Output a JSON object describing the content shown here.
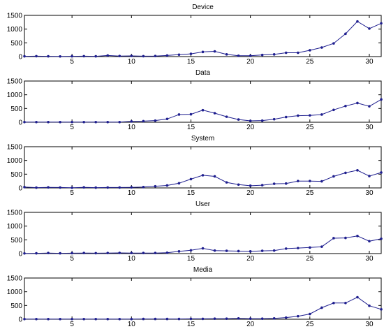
{
  "chart_data": [
    {
      "type": "line",
      "title": "Device",
      "xlabel": "",
      "ylabel": "",
      "xlim": [
        1,
        31
      ],
      "ylim": [
        0,
        1500
      ],
      "xticks": [
        5,
        10,
        15,
        20,
        25,
        30
      ],
      "yticks": [
        0,
        500,
        1000,
        1500
      ],
      "grid": false,
      "color": "#1f1f8f",
      "x": [
        1,
        2,
        3,
        4,
        5,
        6,
        7,
        8,
        9,
        10,
        11,
        12,
        13,
        14,
        15,
        16,
        17,
        18,
        19,
        20,
        21,
        22,
        23,
        24,
        25,
        26,
        27,
        28,
        29,
        30,
        31
      ],
      "values": [
        10,
        15,
        10,
        5,
        10,
        15,
        10,
        40,
        20,
        25,
        15,
        20,
        40,
        70,
        100,
        170,
        190,
        80,
        30,
        30,
        60,
        80,
        140,
        140,
        230,
        330,
        480,
        830,
        1280,
        1020,
        1210
      ]
    },
    {
      "type": "line",
      "title": "Data",
      "xlabel": "",
      "ylabel": "",
      "xlim": [
        1,
        31
      ],
      "ylim": [
        0,
        1500
      ],
      "xticks": [
        5,
        10,
        15,
        20,
        25,
        30
      ],
      "yticks": [
        0,
        500,
        1000,
        1500
      ],
      "grid": false,
      "color": "#1f1f8f",
      "x": [
        1,
        2,
        3,
        4,
        5,
        6,
        7,
        8,
        9,
        10,
        11,
        12,
        13,
        14,
        15,
        16,
        17,
        18,
        19,
        20,
        21,
        22,
        23,
        24,
        25,
        26,
        27,
        28,
        29,
        30,
        31
      ],
      "values": [
        5,
        5,
        5,
        5,
        5,
        5,
        5,
        5,
        5,
        30,
        40,
        60,
        120,
        280,
        290,
        440,
        330,
        200,
        100,
        50,
        60,
        110,
        190,
        240,
        250,
        280,
        450,
        590,
        700,
        580,
        830
      ]
    },
    {
      "type": "line",
      "title": "System",
      "xlabel": "",
      "ylabel": "",
      "xlim": [
        1,
        31
      ],
      "ylim": [
        0,
        1500
      ],
      "xticks": [
        5,
        10,
        15,
        20,
        25,
        30
      ],
      "yticks": [
        0,
        500,
        1000,
        1500
      ],
      "grid": false,
      "color": "#1f1f8f",
      "x": [
        1,
        2,
        3,
        4,
        5,
        6,
        7,
        8,
        9,
        10,
        11,
        12,
        13,
        14,
        15,
        16,
        17,
        18,
        19,
        20,
        21,
        22,
        23,
        24,
        25,
        26,
        27,
        28,
        29,
        30,
        31
      ],
      "values": [
        30,
        10,
        20,
        15,
        5,
        20,
        10,
        15,
        15,
        20,
        30,
        60,
        90,
        170,
        320,
        460,
        420,
        200,
        120,
        80,
        100,
        150,
        160,
        250,
        250,
        240,
        420,
        550,
        640,
        430,
        560
      ]
    },
    {
      "type": "line",
      "title": "User",
      "xlabel": "",
      "ylabel": "",
      "xlim": [
        1,
        31
      ],
      "ylim": [
        0,
        1500
      ],
      "xticks": [
        5,
        10,
        15,
        20,
        25,
        30
      ],
      "yticks": [
        0,
        500,
        1000,
        1500
      ],
      "grid": false,
      "color": "#1f1f8f",
      "x": [
        1,
        2,
        3,
        4,
        5,
        6,
        7,
        8,
        9,
        10,
        11,
        12,
        13,
        14,
        15,
        16,
        17,
        18,
        19,
        20,
        21,
        22,
        23,
        24,
        25,
        26,
        27,
        28,
        29,
        30,
        31
      ],
      "values": [
        5,
        10,
        20,
        10,
        15,
        20,
        15,
        20,
        25,
        20,
        20,
        20,
        30,
        80,
        120,
        190,
        110,
        100,
        90,
        80,
        100,
        110,
        180,
        200,
        220,
        250,
        560,
        570,
        640,
        450,
        540
      ]
    },
    {
      "type": "line",
      "title": "Media",
      "xlabel": "",
      "ylabel": "",
      "xlim": [
        1,
        31
      ],
      "ylim": [
        0,
        1500
      ],
      "xticks": [
        5,
        10,
        15,
        20,
        25,
        30
      ],
      "yticks": [
        0,
        500,
        1000,
        1500
      ],
      "grid": false,
      "color": "#1f1f8f",
      "x": [
        1,
        2,
        3,
        4,
        5,
        6,
        7,
        8,
        9,
        10,
        11,
        12,
        13,
        14,
        15,
        16,
        17,
        18,
        19,
        20,
        21,
        22,
        23,
        24,
        25,
        26,
        27,
        28,
        29,
        30,
        31
      ],
      "values": [
        5,
        5,
        5,
        5,
        5,
        5,
        5,
        5,
        5,
        5,
        10,
        10,
        10,
        10,
        15,
        15,
        20,
        20,
        30,
        20,
        20,
        30,
        60,
        110,
        190,
        420,
        590,
        590,
        800,
        490,
        360
      ]
    }
  ]
}
